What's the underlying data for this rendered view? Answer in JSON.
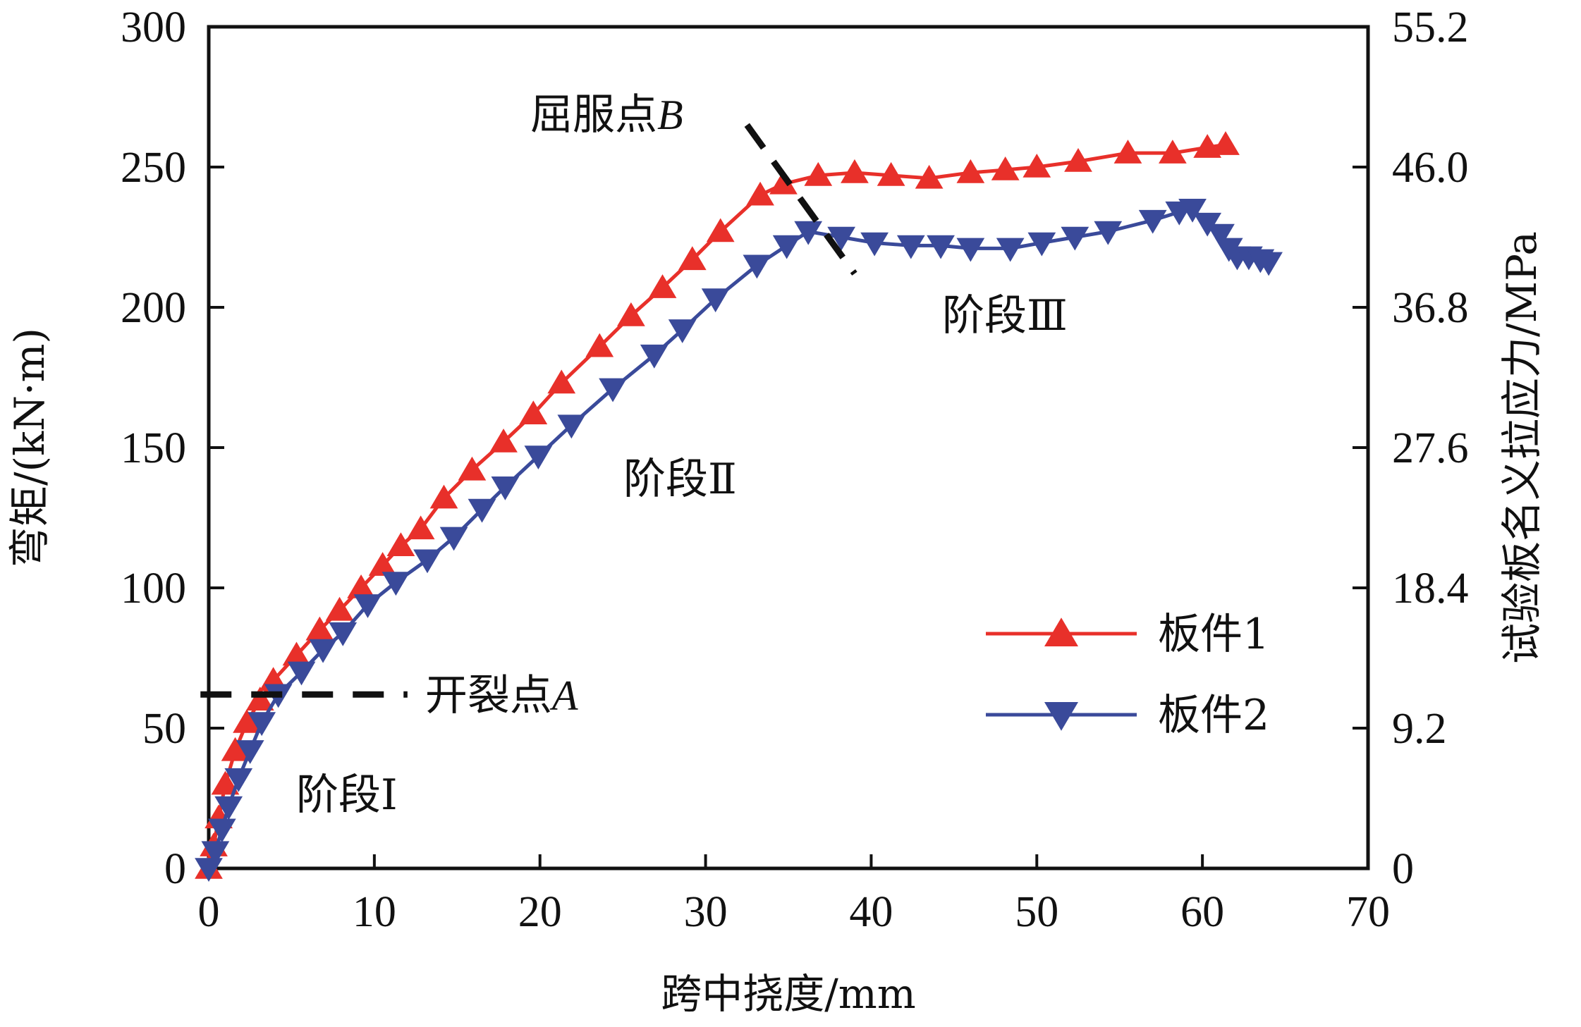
{
  "chart_data": {
    "type": "line",
    "xlabel": "跨中挠度/mm",
    "ylabel": "弯矩/(kN·m)",
    "y2label": "试验板名义拉应力/MPa",
    "xlim": [
      0,
      70
    ],
    "ylim": [
      0,
      300
    ],
    "y2lim": [
      0,
      55.2
    ],
    "x_ticks": [
      "0",
      "10",
      "20",
      "30",
      "40",
      "50",
      "60",
      "70"
    ],
    "y_ticks": [
      "0",
      "50",
      "100",
      "150",
      "200",
      "250",
      "300"
    ],
    "y2_ticks": [
      "0",
      "9.2",
      "18.4",
      "27.6",
      "36.8",
      "46.0",
      "55.2"
    ],
    "grid": false,
    "legend_position": "bottom-right",
    "series": [
      {
        "name": "板件1",
        "color": "#e8302a",
        "marker": "triangle-up",
        "points": [
          [
            0,
            0
          ],
          [
            0.3,
            8
          ],
          [
            0.6,
            18
          ],
          [
            1.0,
            30
          ],
          [
            1.6,
            42
          ],
          [
            2.3,
            52
          ],
          [
            3.1,
            60
          ],
          [
            3.9,
            67
          ],
          [
            5.3,
            76
          ],
          [
            6.7,
            85
          ],
          [
            7.9,
            92
          ],
          [
            9.2,
            100
          ],
          [
            10.5,
            108
          ],
          [
            11.6,
            115
          ],
          [
            12.8,
            121
          ],
          [
            14.2,
            132
          ],
          [
            15.9,
            142
          ],
          [
            17.8,
            152
          ],
          [
            19.6,
            162
          ],
          [
            21.3,
            173
          ],
          [
            23.6,
            186
          ],
          [
            25.5,
            197
          ],
          [
            27.4,
            207
          ],
          [
            29.2,
            217
          ],
          [
            30.9,
            227
          ],
          [
            33.3,
            240
          ],
          [
            34.7,
            244
          ],
          [
            36.8,
            247
          ],
          [
            39.0,
            248
          ],
          [
            41.2,
            247
          ],
          [
            43.5,
            246
          ],
          [
            46.0,
            248
          ],
          [
            48.1,
            249
          ],
          [
            50.0,
            250
          ],
          [
            52.5,
            252
          ],
          [
            55.5,
            255
          ],
          [
            58.2,
            255
          ],
          [
            60.3,
            257
          ],
          [
            61.4,
            258
          ]
        ]
      },
      {
        "name": "板件2",
        "color": "#3a4a9a",
        "marker": "triangle-down",
        "points": [
          [
            0,
            0
          ],
          [
            0.4,
            6
          ],
          [
            0.8,
            14
          ],
          [
            1.2,
            22
          ],
          [
            1.8,
            32
          ],
          [
            2.5,
            42
          ],
          [
            3.2,
            52
          ],
          [
            4.2,
            62
          ],
          [
            5.6,
            70
          ],
          [
            6.9,
            78
          ],
          [
            8.1,
            84
          ],
          [
            9.6,
            94
          ],
          [
            11.3,
            102
          ],
          [
            13.2,
            110
          ],
          [
            14.8,
            118
          ],
          [
            16.5,
            128
          ],
          [
            17.9,
            136
          ],
          [
            19.9,
            147
          ],
          [
            21.9,
            158
          ],
          [
            24.4,
            171
          ],
          [
            26.9,
            183
          ],
          [
            28.6,
            192
          ],
          [
            30.6,
            203
          ],
          [
            33.1,
            215
          ],
          [
            34.9,
            222
          ],
          [
            36.2,
            227
          ],
          [
            38.2,
            225
          ],
          [
            40.2,
            223
          ],
          [
            42.4,
            222
          ],
          [
            44.2,
            222
          ],
          [
            46.0,
            221
          ],
          [
            48.4,
            221
          ],
          [
            50.3,
            223
          ],
          [
            52.3,
            225
          ],
          [
            54.3,
            227
          ],
          [
            57.0,
            231
          ],
          [
            58.6,
            234
          ],
          [
            59.4,
            235
          ],
          [
            60.3,
            230
          ],
          [
            61.1,
            226
          ],
          [
            61.6,
            221
          ],
          [
            62.1,
            218
          ],
          [
            62.8,
            218
          ],
          [
            63.5,
            217
          ],
          [
            64.0,
            216
          ]
        ]
      }
    ],
    "annotations": {
      "stage1": "阶段Ⅰ",
      "stage2": "阶段Ⅱ",
      "stage3": "阶段Ⅲ",
      "crack_point_prefix": "开裂点",
      "crack_point_letter": "A",
      "yield_point_prefix": "屈服点",
      "yield_point_letter": "B",
      "crack_moment": 62,
      "crack_line_x": [
        -0.5,
        12.0
      ],
      "yield_line": [
        [
          32.5,
          265
        ],
        [
          39.0,
          212
        ]
      ]
    }
  }
}
